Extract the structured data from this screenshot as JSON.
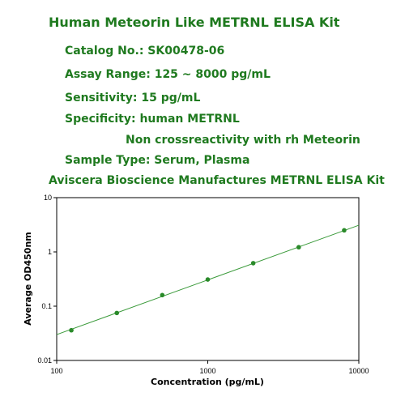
{
  "texts": {
    "title": "Human Meteorin Like METRNL ELISA Kit",
    "catalog": "Catalog No.: SK00478-06",
    "assay_range": "Assay Range: 125 ~ 8000 pg/mL",
    "sensitivity": "Sensitivity: 15 pg/mL",
    "specificity": "Specificity: human METRNL",
    "cross": "Non crossreactivity with rh Meteorin",
    "sample_type": "Sample Type: Serum, Plasma",
    "manufacturer": "Aviscera Bioscience  Manufactures METRNL ELISA Kit"
  },
  "chart_data": {
    "type": "scatter",
    "x_label": "Concentration (pg/mL)",
    "y_label": "Average OD450nm",
    "x": [
      125,
      250,
      500,
      1000,
      2000,
      4000,
      8000
    ],
    "values": [
      0.036,
      0.075,
      0.16,
      0.31,
      0.62,
      1.22,
      2.5
    ],
    "color": "#2a8a2a",
    "fit_line": {
      "x": [
        100,
        10000
      ],
      "values": [
        0.03,
        3.1
      ],
      "color": "#3a9a3a"
    },
    "x_log": true,
    "y_log": true,
    "xlim": [
      100,
      10000
    ],
    "ylim": [
      0.01,
      10
    ],
    "xticks": [
      100,
      1000,
      10000
    ],
    "yticks": [
      0.01,
      0.1,
      1,
      10
    ]
  }
}
